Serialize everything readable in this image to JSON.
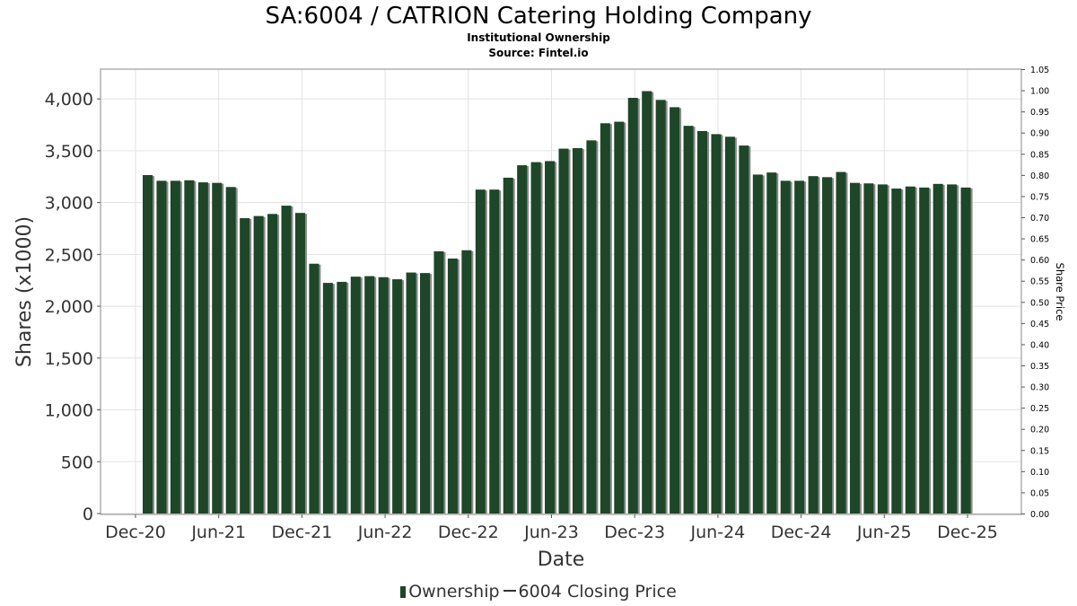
{
  "title": "SA:6004 / CATRION Catering Holding Company",
  "subtitle": "Institutional Ownership",
  "source": "Source: Fintel.io",
  "legend": {
    "ownership": "Ownership",
    "price": "6004 Closing Price"
  },
  "colors": {
    "bar": "#1e4628",
    "bar_shadow": "#8a8a8a",
    "grid": "#e2e2e2",
    "frame": "#888888"
  },
  "chart_data": {
    "type": "bar",
    "xlabel": "Date",
    "ylabel": "Shares (x1000)",
    "y2label": "Share Price",
    "ylim": [
      0,
      4300
    ],
    "y2lim": [
      0,
      1.05
    ],
    "yticks": [
      0,
      500,
      1000,
      1500,
      2000,
      2500,
      3000,
      3500,
      4000
    ],
    "ytick_labels": [
      "0",
      "500",
      "1,000",
      "1,500",
      "2,000",
      "2,500",
      "3,000",
      "3,500",
      "4,000"
    ],
    "y2ticks": [
      "0.00",
      "0.05",
      "0.10",
      "0.15",
      "0.20",
      "0.25",
      "0.30",
      "0.35",
      "0.40",
      "0.45",
      "0.50",
      "0.55",
      "0.60",
      "0.65",
      "0.70",
      "0.75",
      "0.80",
      "0.85",
      "0.90",
      "0.95",
      "1.00",
      "1.05"
    ],
    "xticks": [
      "Dec-20",
      "Jun-21",
      "Dec-21",
      "Jun-22",
      "Dec-22",
      "Jun-23",
      "Dec-23",
      "Jun-24",
      "Dec-24",
      "Jun-25",
      "Dec-25"
    ],
    "grid": true,
    "legend_position": "bottom",
    "series": [
      {
        "name": "Ownership",
        "values": [
          3265,
          3210,
          3210,
          3215,
          3195,
          3190,
          3150,
          2850,
          2870,
          2890,
          2970,
          2900,
          2410,
          2225,
          2235,
          2285,
          2290,
          2280,
          2260,
          2325,
          2320,
          2530,
          2460,
          2540,
          3125,
          3125,
          3240,
          3360,
          3390,
          3400,
          3520,
          3525,
          3600,
          3765,
          3780,
          4010,
          4075,
          3990,
          3920,
          3740,
          3690,
          3660,
          3635,
          3550,
          3270,
          3290,
          3210,
          3210,
          3255,
          3245,
          3295,
          3190,
          3185,
          3175,
          3135,
          3155,
          3145,
          3180,
          3175,
          3145
        ]
      }
    ]
  }
}
